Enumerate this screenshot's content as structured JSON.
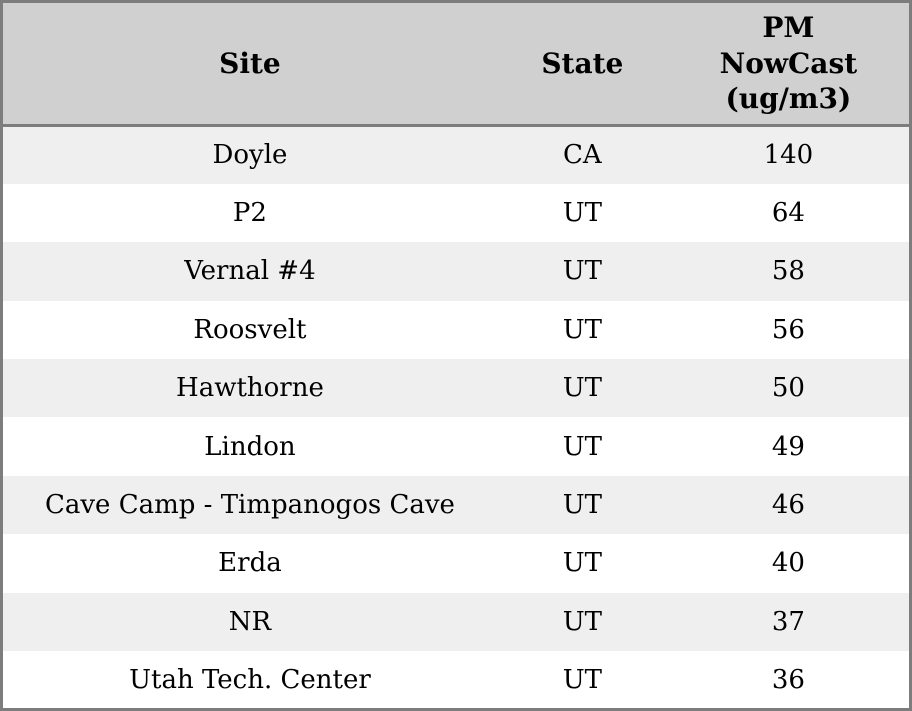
{
  "chart_data": {
    "type": "table",
    "columns": [
      "Site",
      "State",
      "PM NowCast (ug/m3)"
    ],
    "rows": [
      [
        "Doyle",
        "CA",
        140
      ],
      [
        "P2",
        "UT",
        64
      ],
      [
        "Vernal #4",
        "UT",
        58
      ],
      [
        "Roosvelt",
        "UT",
        56
      ],
      [
        "Hawthorne",
        "UT",
        50
      ],
      [
        "Lindon",
        "UT",
        49
      ],
      [
        "Cave Camp - Timpanogos Cave",
        "UT",
        46
      ],
      [
        "Erda",
        "UT",
        40
      ],
      [
        "NR",
        "UT",
        37
      ],
      [
        "Utah Tech. Center",
        "UT",
        36
      ]
    ],
    "layout": {
      "striped": true,
      "header_position": "top",
      "alignment": "center"
    }
  },
  "colors": {
    "header_bg": "#d0d0d0",
    "row_odd_bg": "#efefef",
    "row_even_bg": "#ffffff",
    "border": "#7d7d7d",
    "text": "#000000"
  }
}
